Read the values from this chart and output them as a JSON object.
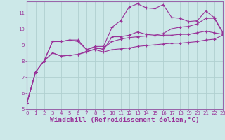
{
  "x": [
    0,
    1,
    2,
    3,
    4,
    5,
    6,
    7,
    8,
    9,
    10,
    11,
    12,
    13,
    14,
    15,
    16,
    17,
    18,
    19,
    20,
    21,
    22,
    23
  ],
  "line1": [
    5.4,
    7.3,
    8.0,
    9.2,
    9.2,
    9.3,
    9.3,
    8.7,
    8.9,
    8.9,
    10.1,
    10.5,
    11.35,
    11.55,
    11.3,
    11.25,
    11.5,
    10.7,
    10.65,
    10.45,
    10.5,
    11.1,
    10.7,
    9.8
  ],
  "line2": [
    5.4,
    7.3,
    8.0,
    9.2,
    9.2,
    9.3,
    9.2,
    8.7,
    8.85,
    8.7,
    9.5,
    9.5,
    9.6,
    9.8,
    9.65,
    9.6,
    9.7,
    10.0,
    10.1,
    10.15,
    10.3,
    10.65,
    10.65,
    9.75
  ],
  "line3": [
    5.4,
    7.3,
    8.0,
    8.5,
    8.3,
    8.35,
    8.4,
    8.55,
    8.75,
    8.8,
    9.2,
    9.35,
    9.45,
    9.5,
    9.55,
    9.55,
    9.6,
    9.6,
    9.65,
    9.65,
    9.75,
    9.85,
    9.75,
    9.65
  ],
  "line4": [
    5.4,
    7.3,
    8.0,
    8.5,
    8.3,
    8.35,
    8.4,
    8.6,
    8.7,
    8.55,
    8.7,
    8.75,
    8.8,
    8.9,
    8.95,
    9.0,
    9.05,
    9.1,
    9.1,
    9.15,
    9.2,
    9.3,
    9.35,
    9.6
  ],
  "bg_color": "#cce8e8",
  "grid_color": "#b0d0d0",
  "line_color": "#993399",
  "border_color": "#9966aa",
  "xlabel_label": "Windchill (Refroidissement éolien,°C)",
  "tick_fontsize": 5.2,
  "xlabel_fontsize": 6.8
}
